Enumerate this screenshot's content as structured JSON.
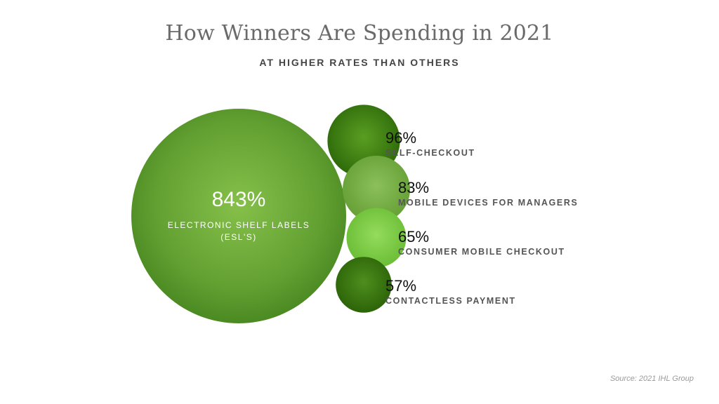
{
  "chart_data": {
    "type": "bubble",
    "title": "How Winners Are Spending in 2021",
    "subtitle": "AT HIGHER RATES THAN OTHERS",
    "unit": "%",
    "categories": [
      "ELECTRONIC SHELF LABELS (ESL'S)",
      "SELF-CHECKOUT",
      "MOBILE DEVICES FOR MANAGERS",
      "CONSUMER MOBILE CHECKOUT",
      "CONTACTLESS PAYMENT"
    ],
    "values": [
      843,
      96,
      83,
      65,
      57
    ],
    "value_labels": [
      "843%",
      "96%",
      "83%",
      "65%",
      "57%"
    ],
    "colors": [
      "#6aa838",
      "#3f7d12",
      "#7db34a",
      "#7fcb45",
      "#3a7410"
    ]
  },
  "source": "Source: 2021 IHL Group"
}
